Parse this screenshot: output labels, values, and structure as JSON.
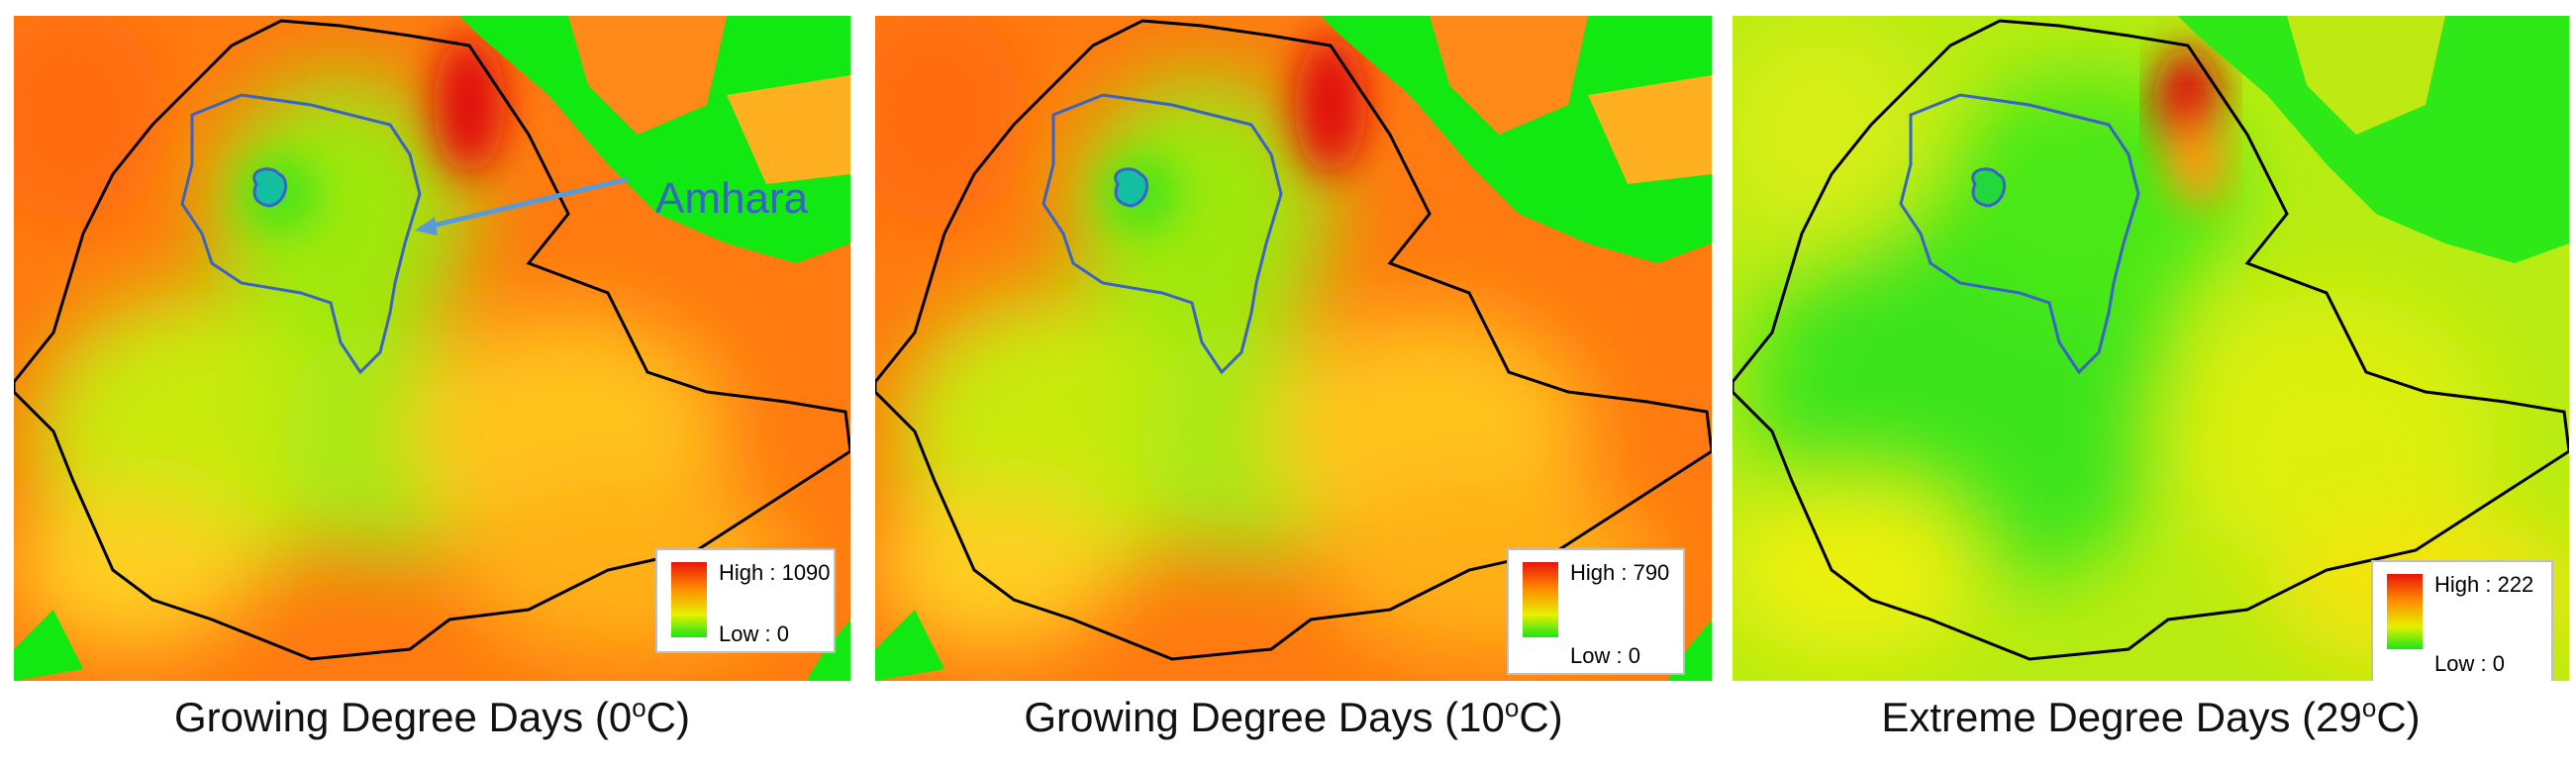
{
  "panels": [
    {
      "caption_main": "Growing Degree Days (0",
      "caption_sup": "o",
      "caption_end": "C)",
      "legend_high": "High : 1090",
      "legend_low": "Low : 0"
    },
    {
      "caption_main": "Growing Degree Days (10",
      "caption_sup": "o",
      "caption_end": "C)",
      "legend_high": "High : 790",
      "legend_low": "Low : 0"
    },
    {
      "caption_main": "Extreme Degree Days (29",
      "caption_sup": "o",
      "caption_end": "C)",
      "legend_high": "High : 222",
      "legend_low": "Low : 0"
    }
  ],
  "annotation": {
    "label": "Amhara"
  },
  "colors": {
    "high": "#e8140a",
    "mid": "#ff8a00",
    "low_mid": "#e6f000",
    "low": "#19e619",
    "region_outline": "#3a63c9",
    "border": "#000000"
  }
}
